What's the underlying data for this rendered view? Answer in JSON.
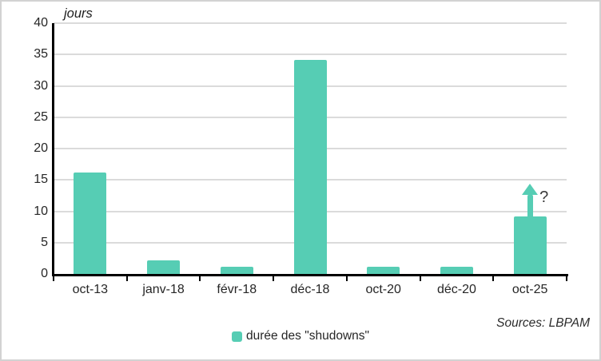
{
  "chart_data": {
    "type": "bar",
    "title": "jours",
    "categories": [
      "oct-13",
      "janv-18",
      "févr-18",
      "déc-18",
      "oct-20",
      "déc-20",
      "oct-25"
    ],
    "values": [
      16.2,
      2.2,
      1.2,
      34.2,
      1.2,
      1.2,
      9.2
    ],
    "ylim": [
      0,
      40
    ],
    "yticks": [
      0,
      5,
      10,
      15,
      20,
      25,
      30,
      35,
      40
    ],
    "grid": true,
    "legend": {
      "label": "durée des \"shudowns\"",
      "position": "bottom"
    },
    "annotation": {
      "category": "oct-25",
      "symbol": "up-arrow",
      "text": "?"
    },
    "colors": {
      "bar": "#56CDB4",
      "grid": "#dbdbdb",
      "axis": "#000000",
      "text": "#262626"
    }
  },
  "footer": {
    "sources": "Sources: LBPAM"
  }
}
